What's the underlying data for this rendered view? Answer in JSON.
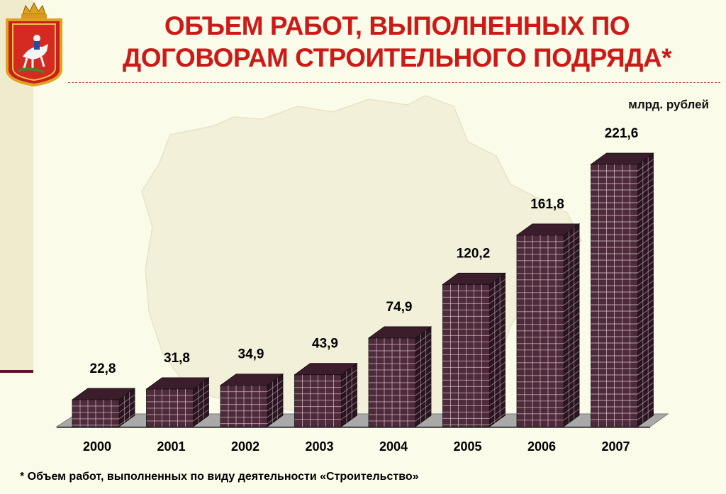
{
  "title_line1": "ОБЪЕМ РАБОТ, ВЫПОЛНЕННЫХ ПО",
  "title_line2": "ДОГОВОРАМ СТРОИТЕЛЬНОГО ПОДРЯДА*",
  "units": "млрд. рублей",
  "footnote": "* Объем работ, выполненных по виду деятельности «Строительство»",
  "colors": {
    "title": "#cc1a18",
    "bar_front": "#4f2a3a",
    "bar_side": "#2a1420",
    "bar_top": "#3b1d2b",
    "grid_line": "#d9c9d0"
  },
  "chart_data": {
    "type": "bar",
    "categories": [
      "2000",
      "2001",
      "2002",
      "2003",
      "2004",
      "2005",
      "2006",
      "2007"
    ],
    "values": [
      22.8,
      31.8,
      34.9,
      43.9,
      74.9,
      120.2,
      161.8,
      221.6
    ],
    "value_labels": [
      "22,8",
      "31,8",
      "34,9",
      "43,9",
      "74,9",
      "120,2",
      "161,8",
      "221,6"
    ],
    "ylim": [
      0,
      221.6
    ],
    "grid": false,
    "legend": "none",
    "style": "3d-column"
  }
}
